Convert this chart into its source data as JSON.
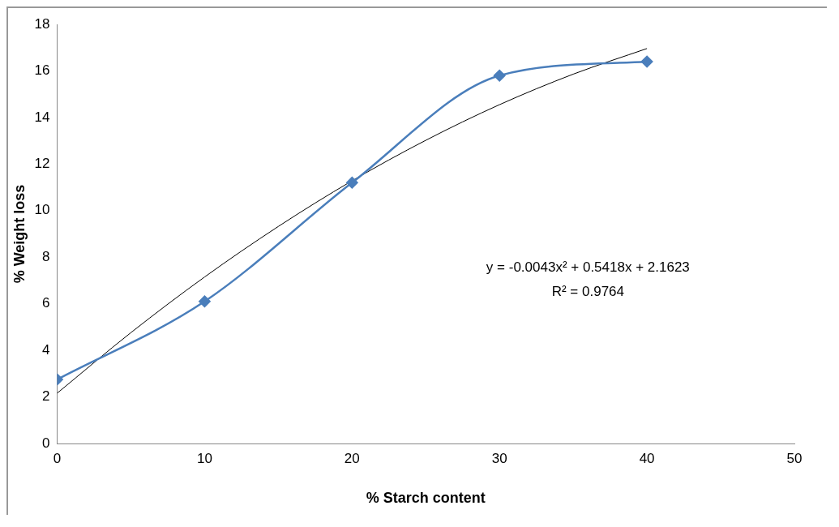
{
  "chart_data": {
    "type": "line",
    "xlabel": "% Starch content",
    "ylabel": "% Weight loss",
    "xlim": [
      0,
      50
    ],
    "xticks": [
      0,
      10,
      20,
      30,
      40,
      50
    ],
    "ylim": [
      0,
      18
    ],
    "yticks": [
      0,
      2,
      4,
      6,
      8,
      10,
      12,
      14,
      16,
      18
    ],
    "grid": false,
    "legend": false,
    "series": [
      {
        "x": [
          0,
          10,
          20,
          30,
          40
        ],
        "values": [
          2.75,
          6.1,
          11.2,
          15.8,
          16.4
        ],
        "color": "#4a7ebb",
        "marker": "diamond"
      },
      {
        "type": "line",
        "x": [
          0,
          5,
          10,
          15,
          20,
          25,
          30,
          35,
          40
        ],
        "values": [
          2.16,
          4.76,
          7.15,
          9.32,
          11.28,
          13.02,
          14.55,
          15.86,
          16.96
        ],
        "color": "#000000",
        "marker": "none"
      }
    ],
    "annotations": [
      "y = -0.0043x² + 0.5418x + 2.1623",
      "R² = 0.9764"
    ]
  }
}
